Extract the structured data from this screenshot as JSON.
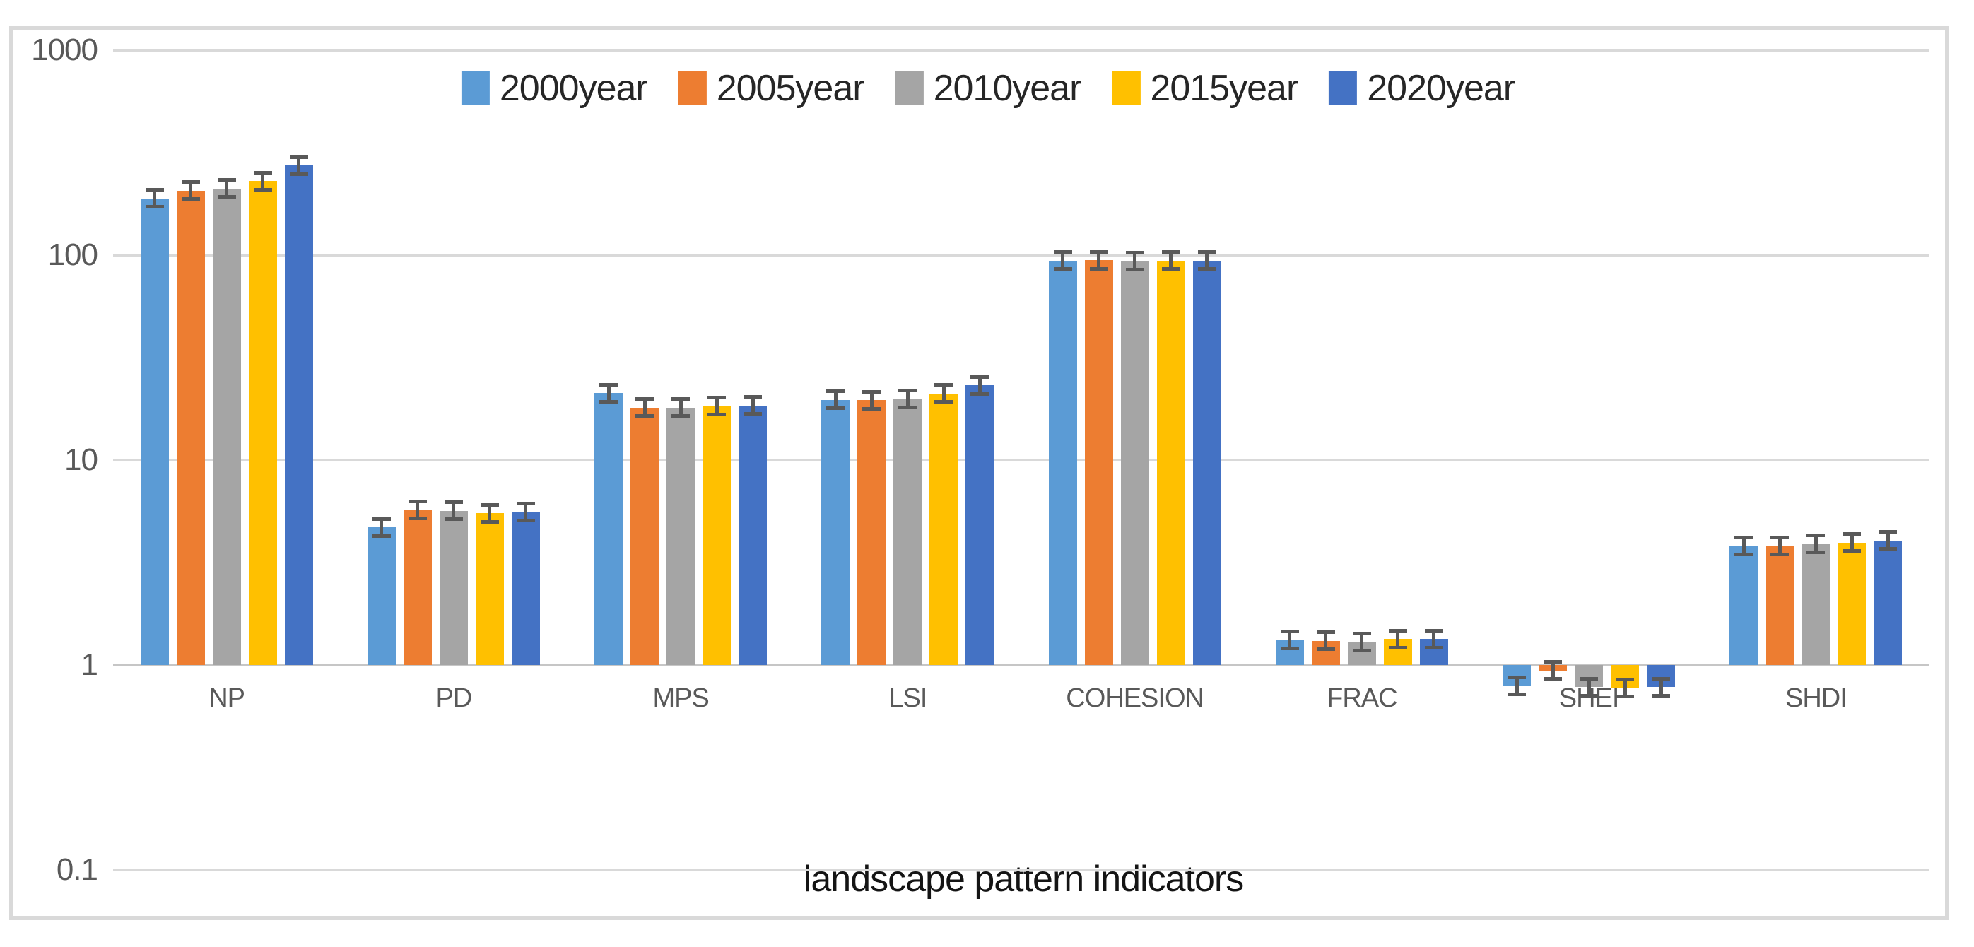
{
  "chart_data": {
    "type": "bar",
    "scale": "log",
    "title": "",
    "xlabel": "landscape pattern indicators",
    "ylabel": "",
    "ylim": [
      0.1,
      1000
    ],
    "baseline": 1,
    "grid": true,
    "legend_position": "top-center",
    "y_ticks": [
      1000,
      100,
      10,
      1,
      0.1
    ],
    "y_tick_labels": [
      "1000",
      "100",
      "10",
      "1",
      "0.1"
    ],
    "categories": [
      "NP",
      "PD",
      "MPS",
      "LSI",
      "COHESION",
      "FRAC",
      "SHEI",
      "SHDI"
    ],
    "series": [
      {
        "name": "2000year",
        "color": "#5B9BD5",
        "values": [
          189,
          4.7,
          21.2,
          19.7,
          94.0,
          1.33,
          0.79,
          3.8
        ]
      },
      {
        "name": "2005year",
        "color": "#ED7D31",
        "values": [
          206,
          5.7,
          18.0,
          19.6,
          94.3,
          1.31,
          0.94,
          3.8
        ]
      },
      {
        "name": "2010year",
        "color": "#A5A5A5",
        "values": [
          211,
          5.65,
          18.0,
          19.8,
          93.8,
          1.29,
          0.78,
          3.9
        ]
      },
      {
        "name": "2015year",
        "color": "#FFC000",
        "values": [
          230,
          5.5,
          18.3,
          21.1,
          94.2,
          1.34,
          0.77,
          3.95
        ]
      },
      {
        "name": "2020year",
        "color": "#4472C4",
        "values": [
          274,
          5.6,
          18.5,
          23.2,
          94.0,
          1.34,
          0.78,
          4.05
        ]
      }
    ],
    "error_bars": {
      "style": "multiplicative",
      "factor": 1.1
    }
  },
  "colors": {
    "gridline": "#d9d9d9",
    "baseline": "#c6c6c6",
    "frame_border": "#d9d9d9",
    "error_bar": "#595959",
    "tick_text": "#595959",
    "category_text": "#595959",
    "legend_text": "#262626",
    "title_text": "#141414",
    "background": "#ffffff"
  }
}
